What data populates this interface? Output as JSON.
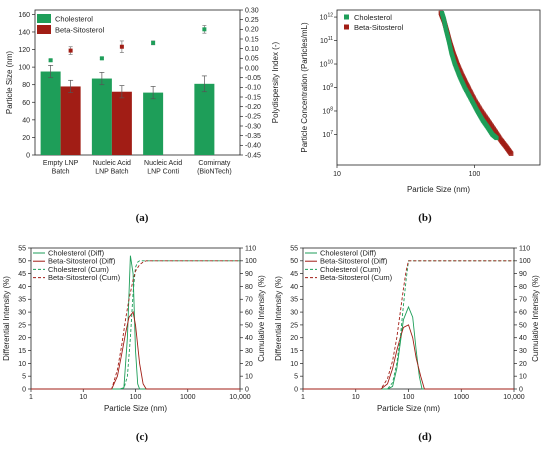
{
  "colors": {
    "green": "#1e9e59",
    "red": "#a11d15",
    "axis": "#222222"
  },
  "captions": [
    "(a)",
    "(b)",
    "(c)",
    "(d)"
  ],
  "chart_data": [
    {
      "id": "a",
      "type": "bar",
      "caption": "(a)",
      "categories": [
        "Empty LNP\nBatch",
        "Nucleic Acid\nLNP Batch",
        "Nucleic Acid\nLNP Conti",
        "Comirnaty\n(BioNTech)"
      ],
      "series": [
        {
          "name": "Cholesterol",
          "color_key": "green",
          "values": [
            95,
            87,
            71,
            81
          ],
          "errors": [
            7,
            7,
            7,
            9
          ]
        },
        {
          "name": "Beta-Sitosterol",
          "color_key": "red",
          "values": [
            78,
            72,
            null,
            null
          ],
          "errors": [
            7,
            7,
            null,
            null
          ]
        }
      ],
      "pdi_series": [
        {
          "name": "Cholesterol",
          "color_key": "green",
          "values": [
            0.04,
            0.05,
            0.13,
            0.2
          ],
          "errors": [
            0.005,
            0.005,
            0.01,
            0.02
          ]
        },
        {
          "name": "Beta-Sitosterol",
          "color_key": "red",
          "values": [
            0.09,
            0.11,
            null,
            null
          ],
          "errors": [
            0.02,
            0.03,
            null,
            null
          ]
        }
      ],
      "ylabel": "Particle Size (nm)",
      "ylim": [
        0,
        165
      ],
      "yticks": [
        0,
        20,
        40,
        60,
        80,
        100,
        120,
        140,
        160
      ],
      "y2label": "Polydispersity Index (-)",
      "y2lim": [
        -0.45,
        0.3
      ],
      "y2ticks": [
        "0.30",
        "0.25",
        "0.20",
        "0.15",
        "0.10",
        "0.05",
        "0.00",
        "-0.05",
        "-0.10",
        "-0.15",
        "-0.20",
        "-0.25",
        "-0.30",
        "-0.35",
        "-0.40",
        "-0.45"
      ],
      "legend": [
        "Cholesterol",
        "Beta-Sitosterol"
      ],
      "legend_position": "top-left"
    },
    {
      "id": "b",
      "type": "scatter",
      "caption": "(b)",
      "xlabel": "Particle Size (nm)",
      "ylabel": "Particle Concentration (Particles/mL)",
      "x_scale": "log",
      "y_scale": "log",
      "xlim": [
        10,
        300
      ],
      "ylim": [
        500000.0,
        2000000000000.0
      ],
      "xticks": [
        "10",
        "100"
      ],
      "yticks": [
        "10^7",
        "10^8",
        "10^9",
        "10^10",
        "10^11",
        "10^12"
      ],
      "series": [
        {
          "name": "Cholesterol",
          "color_key": "green",
          "x": [
            58,
            60,
            62,
            65,
            68,
            72,
            78,
            85,
            95,
            105,
            115,
            125,
            135,
            145
          ],
          "y": [
            1500000000000.0,
            800000000000.0,
            300000000000.0,
            100000000000.0,
            30000000000.0,
            10000000000.0,
            3000000000.0,
            1000000000.0,
            300000000.0,
            100000000.0,
            40000000.0,
            20000000.0,
            10000000.0,
            7000000.0
          ]
        },
        {
          "name": "Beta-Sitosterol",
          "color_key": "red",
          "x": [
            57,
            60,
            63,
            66,
            70,
            75,
            82,
            90,
            100,
            112,
            125,
            140,
            155,
            170,
            185
          ],
          "y": [
            1500000000000.0,
            700000000000.0,
            250000000000.0,
            90000000000.0,
            30000000000.0,
            10000000000.0,
            3000000000.0,
            1000000000.0,
            300000000.0,
            100000000.0,
            40000000.0,
            15000000.0,
            6000000.0,
            3000000.0,
            1500000.0
          ]
        }
      ],
      "legend": [
        "Cholesterol",
        "Beta-Sitosterol"
      ],
      "legend_position": "top-left"
    },
    {
      "id": "c",
      "type": "line",
      "caption": "(c)",
      "xlabel": "Particle Size (nm)",
      "ylabel": "Differential Intensity (%)",
      "y2label": "Cumulative Intensity (%)",
      "x_scale": "log",
      "xlim": [
        1,
        10000
      ],
      "ylim": [
        0,
        55
      ],
      "y2lim": [
        0,
        110
      ],
      "xticks": [
        "1",
        "10",
        "100",
        "1000",
        "10,000"
      ],
      "yticks": [
        0,
        5,
        10,
        15,
        20,
        25,
        30,
        35,
        40,
        45,
        50,
        55
      ],
      "y2ticks": [
        0,
        10,
        20,
        30,
        40,
        50,
        60,
        70,
        80,
        90,
        100,
        110
      ],
      "series": [
        {
          "name": "Cholesterol (Diff)",
          "color_key": "green",
          "dash": "solid",
          "axis": "left",
          "x": [
            1,
            50,
            60,
            70,
            80,
            90,
            100,
            110,
            120,
            10000
          ],
          "y": [
            0,
            0,
            0.5,
            20,
            52,
            45,
            15,
            2,
            0,
            0
          ]
        },
        {
          "name": "Beta-Sitosterol (Diff)",
          "color_key": "red",
          "dash": "solid",
          "axis": "left",
          "x": [
            1,
            35,
            45,
            55,
            65,
            75,
            90,
            100,
            120,
            140,
            160,
            10000
          ],
          "y": [
            0,
            0,
            5,
            14,
            22,
            28,
            30,
            25,
            10,
            2,
            0,
            0
          ]
        },
        {
          "name": "Cholesterol (Cum)",
          "color_key": "green",
          "dash": "dash",
          "axis": "right",
          "x": [
            1,
            50,
            60,
            70,
            80,
            90,
            100,
            110,
            120,
            10000
          ],
          "y": [
            0,
            0,
            0.5,
            10,
            40,
            75,
            95,
            99,
            100,
            100
          ]
        },
        {
          "name": "Beta-Sitosterol (Cum)",
          "color_key": "red",
          "dash": "dash",
          "axis": "right",
          "x": [
            1,
            35,
            45,
            55,
            65,
            75,
            90,
            100,
            120,
            140,
            160,
            10000
          ],
          "y": [
            0,
            0,
            15,
            35,
            55,
            70,
            85,
            92,
            97,
            99,
            100,
            100
          ]
        }
      ],
      "legend": [
        "Cholesterol (Diff)",
        "Beta-Sitosterol (Diff)",
        "Cholesterol (Cum)",
        "Beta-Sitosterol (Cum)"
      ],
      "legend_position": "top-left"
    },
    {
      "id": "d",
      "type": "line",
      "caption": "(d)",
      "xlabel": "Particle Size (nm)",
      "ylabel": "Differential Intensity (%)",
      "y2label": "Cumulative Intensity (%)",
      "x_scale": "log",
      "xlim": [
        1,
        10000
      ],
      "ylim": [
        0,
        55
      ],
      "y2lim": [
        0,
        110
      ],
      "xticks": [
        "1",
        "10",
        "100",
        "1000",
        "10,000"
      ],
      "yticks": [
        0,
        5,
        10,
        15,
        20,
        25,
        30,
        35,
        40,
        45,
        50,
        55
      ],
      "y2ticks": [
        0,
        10,
        20,
        30,
        40,
        50,
        60,
        70,
        80,
        90,
        100,
        110
      ],
      "series": [
        {
          "name": "Cholesterol (Diff)",
          "color_key": "green",
          "dash": "solid",
          "axis": "left",
          "x": [
            1,
            40,
            50,
            60,
            70,
            80,
            100,
            120,
            140,
            160,
            180,
            10000
          ],
          "y": [
            0,
            0,
            1,
            8,
            18,
            27,
            32,
            28,
            15,
            5,
            0,
            0
          ]
        },
        {
          "name": "Beta-Sitosterol (Diff)",
          "color_key": "red",
          "dash": "solid",
          "axis": "left",
          "x": [
            1,
            30,
            40,
            50,
            60,
            70,
            80,
            100,
            120,
            140,
            170,
            200,
            10000
          ],
          "y": [
            0,
            0,
            2,
            8,
            15,
            20,
            24,
            25,
            20,
            12,
            5,
            0,
            0
          ]
        },
        {
          "name": "Cholesterol (Cum)",
          "color_key": "green",
          "dash": "dash",
          "axis": "right",
          "x": [
            1,
            40,
            50,
            60,
            70,
            80,
            90,
            100,
            10000
          ],
          "y": [
            0,
            0,
            5,
            20,
            40,
            65,
            85,
            100,
            100
          ]
        },
        {
          "name": "Beta-Sitosterol (Cum)",
          "color_key": "red",
          "dash": "dash",
          "axis": "right",
          "x": [
            1,
            30,
            40,
            50,
            60,
            70,
            80,
            90,
            100,
            10000
          ],
          "y": [
            0,
            0,
            8,
            22,
            40,
            60,
            78,
            92,
            100,
            100
          ]
        }
      ],
      "legend": [
        "Cholesterol (Diff)",
        "Beta-Sitosterol (Diff)",
        "Cholesterol (Cum)",
        "Beta-Sitosterol (Cum)"
      ],
      "legend_position": "top-left"
    }
  ]
}
